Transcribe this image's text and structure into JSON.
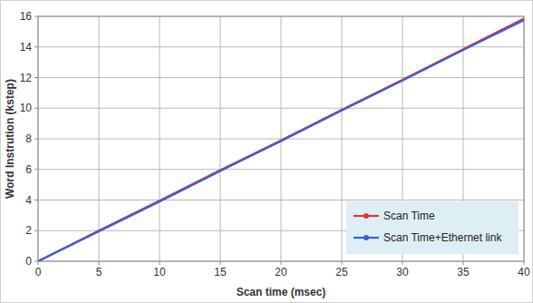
{
  "chart_data": {
    "type": "line",
    "x_label": "Scan time (msec)",
    "y_label": "Word Instrution (kstep)",
    "x": [
      0,
      5,
      10,
      15,
      20,
      25,
      30,
      35,
      40
    ],
    "series": [
      {
        "name": "Scan Time",
        "color": "#d9363e",
        "values": [
          0,
          2.0,
          3.95,
          5.95,
          7.9,
          9.9,
          11.85,
          13.85,
          15.85
        ]
      },
      {
        "name": "Scan Time+Ethernet link",
        "color": "#3a62c9",
        "values": [
          0,
          1.95,
          3.9,
          5.9,
          7.85,
          9.85,
          11.8,
          13.8,
          15.75
        ]
      }
    ],
    "xlim": [
      0,
      40
    ],
    "ylim": [
      0,
      16
    ],
    "xticks": [
      0,
      5,
      10,
      15,
      20,
      25,
      30,
      35,
      40
    ],
    "yticks": [
      0,
      2,
      4,
      6,
      8,
      10,
      12,
      14,
      16
    ],
    "grid": true,
    "legend": "lower right"
  }
}
